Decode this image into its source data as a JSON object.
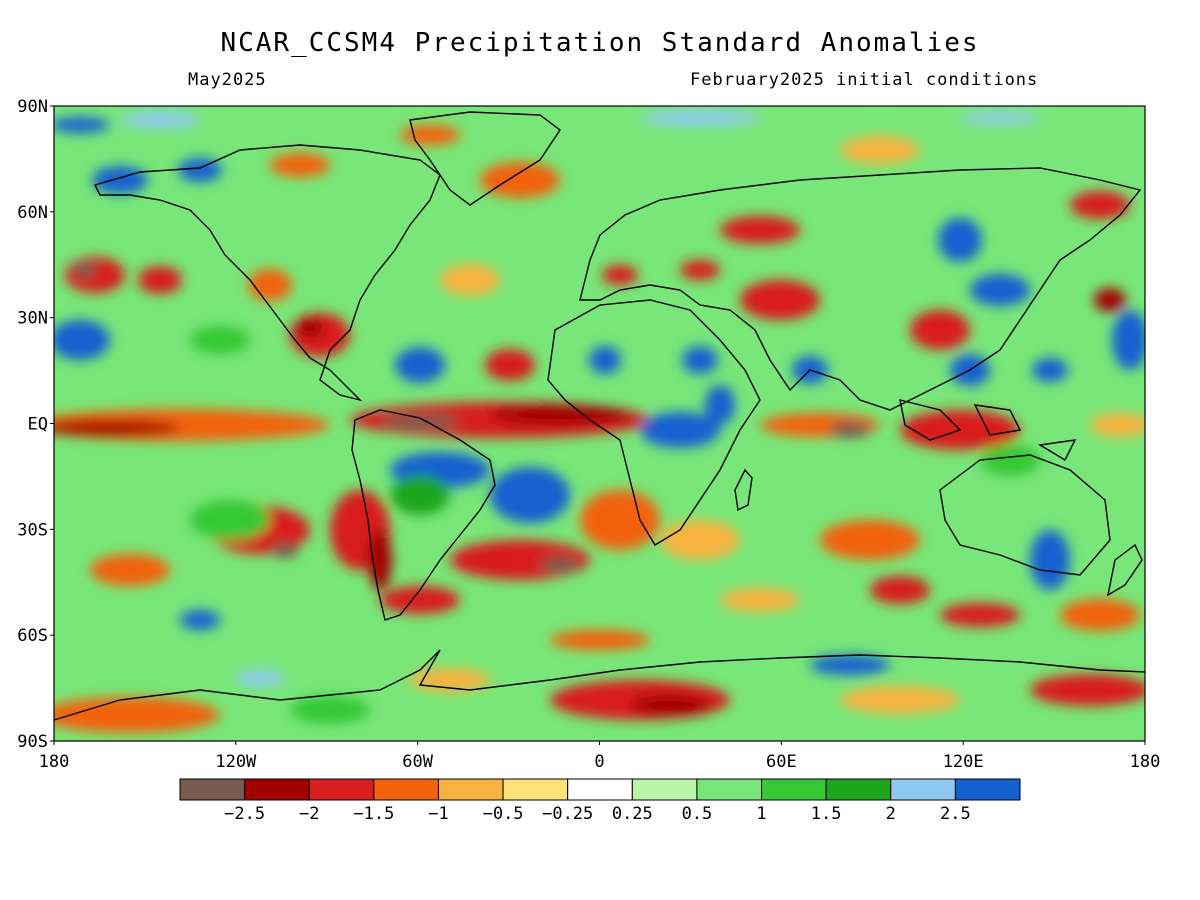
{
  "title": "NCAR_CCSM4 Precipitation Standard Anomalies",
  "subtitle_left": "May2025",
  "subtitle_right": "February2025 initial conditions",
  "y_ticks": [
    "90N",
    "60N",
    "30N",
    "EQ",
    "30S",
    "60S",
    "90S"
  ],
  "x_ticks": [
    "180",
    "120W",
    "60W",
    "0",
    "60E",
    "120E",
    "180"
  ],
  "colorbar": {
    "colors": [
      "#7a5a4e",
      "#a30000",
      "#d81e1e",
      "#f2620c",
      "#f7b240",
      "#fde27a",
      "#ffffff",
      "#b8f5a8",
      "#78e678",
      "#36c836",
      "#1ea51e",
      "#8ec9f2",
      "#1560d0"
    ],
    "labels": [
      "−2.5",
      "−2",
      "−1.5",
      "−1",
      "−0.5",
      "−0.25",
      "0.25",
      "0.5",
      "1",
      "1.5",
      "2",
      "2.5"
    ]
  },
  "palette": {
    "dry_extreme": "#7a5a4e",
    "dry_strong": "#a30000",
    "dry": "#d81e1e",
    "dry_moderate": "#f2620c",
    "dry_light": "#f7b240",
    "dry_slight": "#fde27a",
    "neutral": "#ffffff",
    "wet_slight": "#b8f5a8",
    "wet_light": "#78e678",
    "wet_moderate": "#36c836",
    "wet": "#1ea51e",
    "wet_strong": "#8ec9f2",
    "wet_extreme": "#1560d0"
  }
}
